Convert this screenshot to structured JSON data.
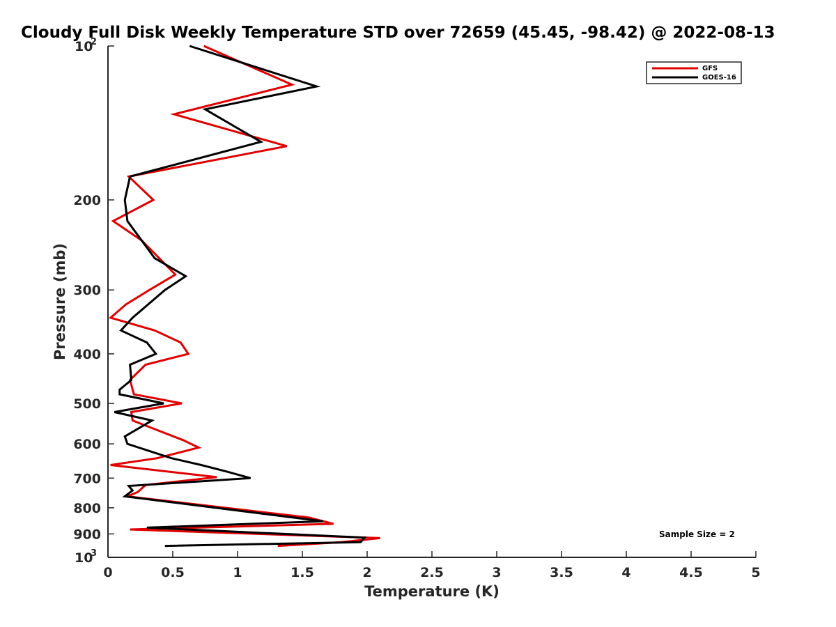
{
  "chart_data": {
    "type": "line",
    "title": "Cloudy Full Disk Weekly Temperature STD over 72659 (45.45, -98.42) @ 2022-08-13",
    "xlabel": "Temperature (K)",
    "ylabel": "Pressure (mb)",
    "xlim": [
      0,
      5
    ],
    "ylim": [
      100,
      1000
    ],
    "y_scale": "log",
    "y_reversed": true,
    "grid": false,
    "legend_position": "top-right",
    "x_ticks": [
      "0",
      "0.5",
      "1",
      "1.5",
      "2",
      "2.5",
      "3",
      "3.5",
      "4",
      "4.5",
      "5"
    ],
    "y_ticks": [
      {
        "value": 100,
        "base": "10",
        "exp": "2"
      },
      {
        "value": 200,
        "label": "200"
      },
      {
        "value": 300,
        "label": "300"
      },
      {
        "value": 400,
        "label": "400"
      },
      {
        "value": 500,
        "label": "500"
      },
      {
        "value": 600,
        "label": "600"
      },
      {
        "value": 700,
        "label": "700"
      },
      {
        "value": 800,
        "label": "800"
      },
      {
        "value": 900,
        "label": "900"
      },
      {
        "value": 1000,
        "base": "10",
        "exp": "3"
      }
    ],
    "annotation": "Sample Size = 2",
    "series": [
      {
        "name": "GFS",
        "color": "#e00000",
        "points": [
          [
            0.74,
            100
          ],
          [
            1.42,
            119
          ],
          [
            0.51,
            136
          ],
          [
            1.38,
            157
          ],
          [
            0.16,
            180
          ],
          [
            0.35,
            200
          ],
          [
            0.04,
            220
          ],
          [
            0.26,
            240
          ],
          [
            0.52,
            280
          ],
          [
            0.32,
            300
          ],
          [
            0.14,
            320
          ],
          [
            0.02,
            340
          ],
          [
            0.36,
            360
          ],
          [
            0.56,
            380
          ],
          [
            0.62,
            400
          ],
          [
            0.29,
            420
          ],
          [
            0.17,
            450
          ],
          [
            0.2,
            480
          ],
          [
            0.57,
            500
          ],
          [
            0.18,
            520
          ],
          [
            0.19,
            540
          ],
          [
            0.58,
            590
          ],
          [
            0.7,
            610
          ],
          [
            0.38,
            640
          ],
          [
            0.02,
            660
          ],
          [
            0.84,
            697
          ],
          [
            0.29,
            722
          ],
          [
            0.23,
            745
          ],
          [
            0.15,
            760
          ],
          [
            1.55,
            836
          ],
          [
            1.74,
            860
          ],
          [
            0.17,
            882
          ],
          [
            2.1,
            917
          ],
          [
            1.8,
            934
          ],
          [
            1.31,
            950
          ]
        ]
      },
      {
        "name": "GOES-16",
        "color": "#000000",
        "points": [
          [
            0.63,
            100
          ],
          [
            1.61,
            120
          ],
          [
            0.75,
            133
          ],
          [
            1.18,
            154
          ],
          [
            0.17,
            180
          ],
          [
            0.13,
            200
          ],
          [
            0.15,
            220
          ],
          [
            0.36,
            260
          ],
          [
            0.6,
            282
          ],
          [
            0.44,
            300
          ],
          [
            0.19,
            340
          ],
          [
            0.1,
            360
          ],
          [
            0.3,
            380
          ],
          [
            0.37,
            400
          ],
          [
            0.17,
            420
          ],
          [
            0.18,
            450
          ],
          [
            0.09,
            470
          ],
          [
            0.09,
            480
          ],
          [
            0.43,
            500
          ],
          [
            0.05,
            520
          ],
          [
            0.34,
            540
          ],
          [
            0.13,
            580
          ],
          [
            0.15,
            600
          ],
          [
            0.49,
            640
          ],
          [
            0.72,
            660
          ],
          [
            0.92,
            680
          ],
          [
            1.1,
            700
          ],
          [
            0.16,
            725
          ],
          [
            0.19,
            740
          ],
          [
            0.13,
            760
          ],
          [
            1.66,
            850
          ],
          [
            0.3,
            875
          ],
          [
            1.98,
            915
          ],
          [
            1.95,
            934
          ],
          [
            0.44,
            950
          ]
        ]
      }
    ]
  }
}
